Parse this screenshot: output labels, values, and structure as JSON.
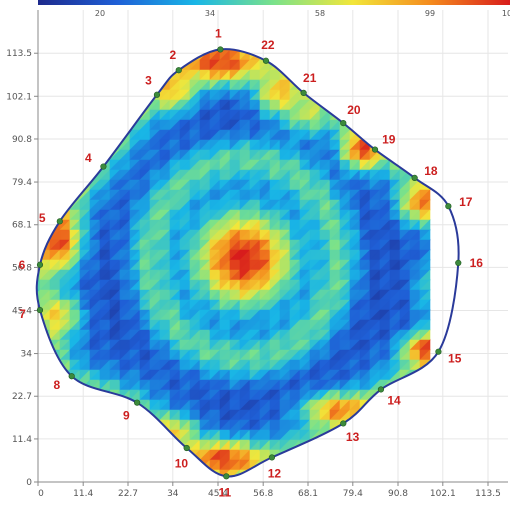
{
  "chart_data": {
    "type": "heatmap",
    "colorbar": {
      "tick_labels": [
        "20",
        "34",
        "58",
        "99",
        "10"
      ],
      "colors": [
        "#1e2a8c",
        "#1f5fd6",
        "#19b6e6",
        "#7be28a",
        "#f2e63a",
        "#f48a1e",
        "#d81c1c"
      ]
    },
    "x_axis": {
      "ticks": [
        0,
        11.4,
        22.7,
        34,
        45.4,
        56.8,
        68.1,
        79.4,
        90.8,
        102.1,
        113.5
      ],
      "tick_labels": [
        "0",
        "11.4",
        "22.7",
        "34",
        "45.4",
        "56.8",
        "68.1",
        "79.4",
        "90.8",
        "102.1",
        "113.5"
      ],
      "range": [
        0,
        113.5
      ]
    },
    "y_axis": {
      "ticks": [
        0,
        11.4,
        22.7,
        34,
        45.4,
        56.8,
        68.1,
        79.4,
        90.8,
        102.1,
        113.5
      ],
      "tick_labels": [
        "0",
        "11.4",
        "22.7",
        "34",
        "45.4",
        "56.8",
        "68.1",
        "79.4",
        "90.8",
        "102.1",
        "113.5"
      ],
      "range": [
        0,
        117
      ]
    },
    "boundary_points": [
      {
        "id": "1",
        "x": 46,
        "y": 114.5
      },
      {
        "id": "2",
        "x": 35.5,
        "y": 109
      },
      {
        "id": "3",
        "x": 30,
        "y": 102.5
      },
      {
        "id": "4",
        "x": 16.5,
        "y": 83.5
      },
      {
        "id": "5",
        "x": 5.5,
        "y": 69
      },
      {
        "id": "6",
        "x": 0.5,
        "y": 57.5
      },
      {
        "id": "7",
        "x": 0.5,
        "y": 45.5
      },
      {
        "id": "8",
        "x": 8.5,
        "y": 28
      },
      {
        "id": "9",
        "x": 25,
        "y": 21
      },
      {
        "id": "10",
        "x": 37.5,
        "y": 9
      },
      {
        "id": "11",
        "x": 47.5,
        "y": 1.5
      },
      {
        "id": "12",
        "x": 59,
        "y": 6.5
      },
      {
        "id": "13",
        "x": 77,
        "y": 15.5
      },
      {
        "id": "14",
        "x": 86.5,
        "y": 24.5
      },
      {
        "id": "15",
        "x": 101,
        "y": 34.5
      },
      {
        "id": "16",
        "x": 106,
        "y": 58
      },
      {
        "id": "17",
        "x": 103.5,
        "y": 73
      },
      {
        "id": "18",
        "x": 95,
        "y": 80.5
      },
      {
        "id": "19",
        "x": 85,
        "y": 88
      },
      {
        "id": "20",
        "x": 77,
        "y": 95
      },
      {
        "id": "21",
        "x": 67,
        "y": 103
      },
      {
        "id": "22",
        "x": 57.5,
        "y": 111.5
      }
    ],
    "hotspots": [
      {
        "x": 52,
        "y": 59,
        "value": 1.0,
        "sx": 9,
        "sy": 9
      },
      {
        "x": 46,
        "y": 111,
        "value": 0.95,
        "sx": 8,
        "sy": 4
      },
      {
        "x": 34,
        "y": 104,
        "value": 0.75,
        "sx": 4,
        "sy": 4
      },
      {
        "x": 61,
        "y": 103,
        "value": 0.75,
        "sx": 4,
        "sy": 4
      },
      {
        "x": 5,
        "y": 64,
        "value": 0.95,
        "sx": 4,
        "sy": 6
      },
      {
        "x": 5,
        "y": 44,
        "value": 0.7,
        "sx": 4,
        "sy": 4
      },
      {
        "x": 47,
        "y": 6,
        "value": 0.95,
        "sx": 7,
        "sy": 3.5
      },
      {
        "x": 34,
        "y": 13,
        "value": 0.7,
        "sx": 4,
        "sy": 3
      },
      {
        "x": 98,
        "y": 35,
        "value": 0.95,
        "sx": 4,
        "sy": 3
      },
      {
        "x": 76,
        "y": 19,
        "value": 0.85,
        "sx": 6,
        "sy": 3
      },
      {
        "x": 82,
        "y": 88,
        "value": 0.95,
        "sx": 3.5,
        "sy": 3.5
      },
      {
        "x": 97,
        "y": 74,
        "value": 0.85,
        "sx": 4,
        "sy": 4
      },
      {
        "x": 102,
        "y": 52,
        "value": 0.55,
        "sx": 4,
        "sy": 5
      },
      {
        "x": 68,
        "y": 98,
        "value": 0.6,
        "sx": 4,
        "sy": 4
      }
    ]
  }
}
